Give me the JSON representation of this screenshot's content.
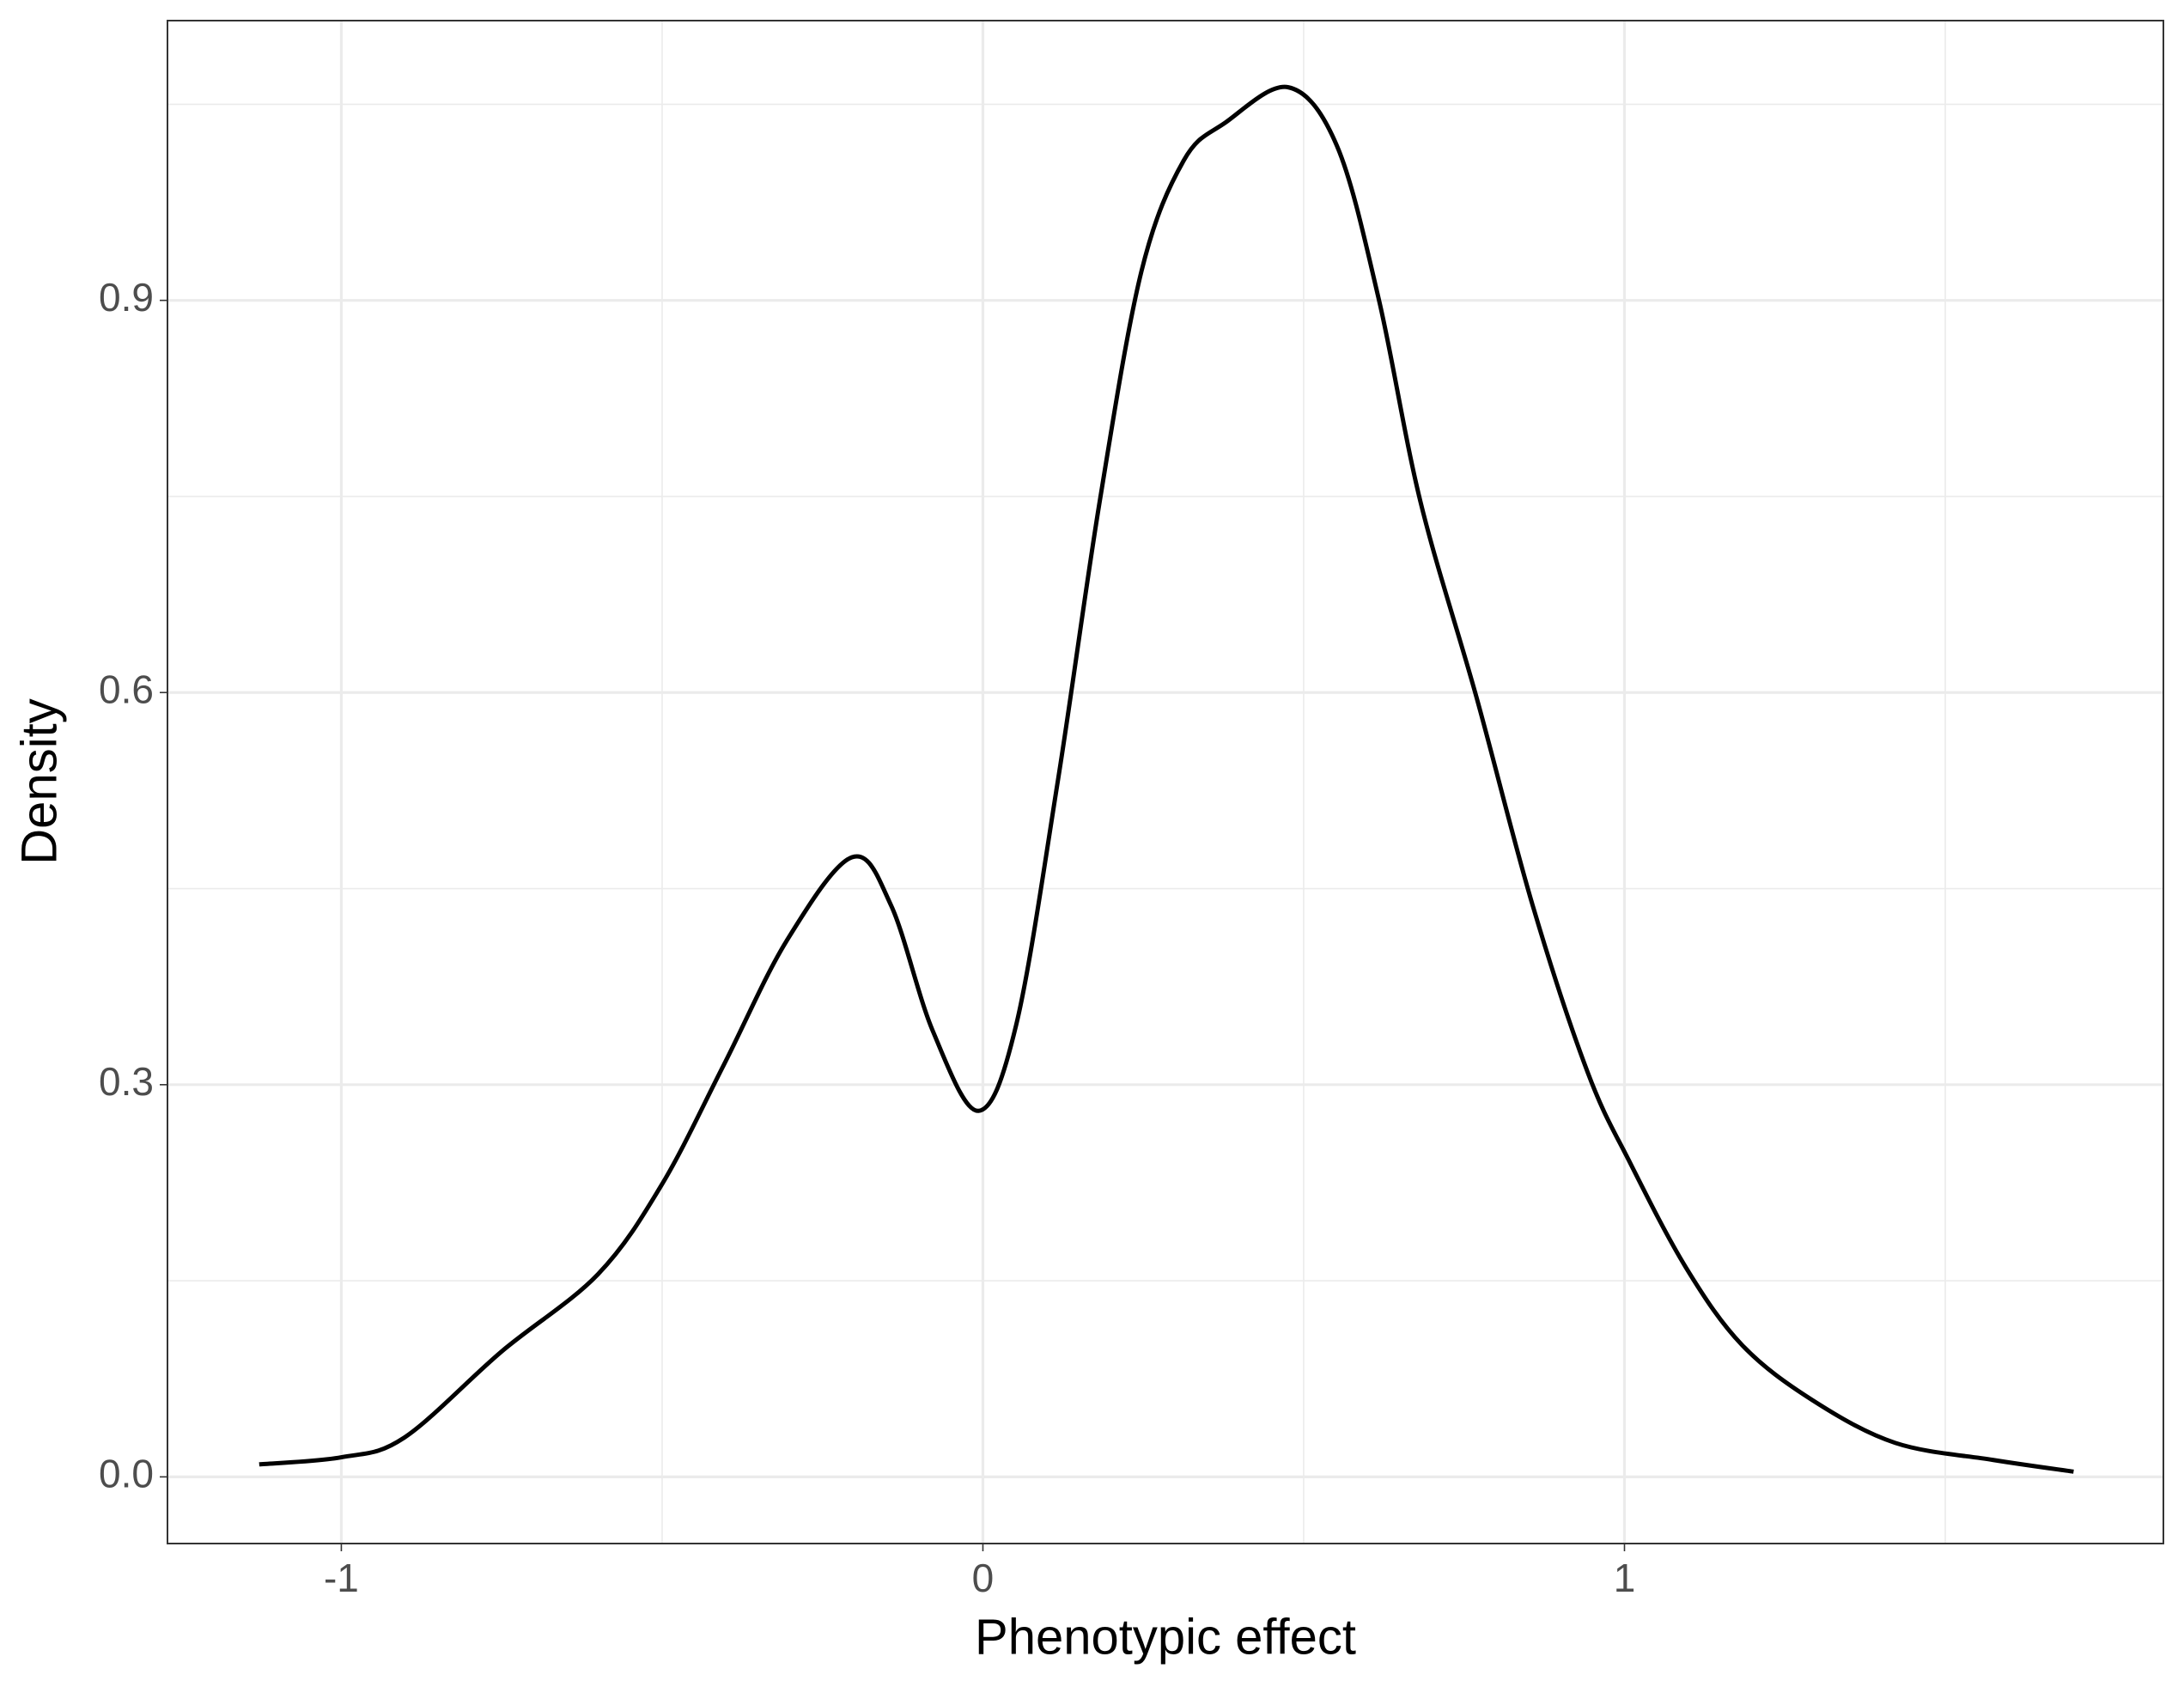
{
  "chart_data": {
    "type": "line",
    "x_label": "Phenotypic effect",
    "y_label": "Density",
    "x": [
      -1.128,
      -1.0,
      -0.902,
      -0.75,
      -0.6,
      -0.5,
      -0.404,
      -0.306,
      -0.204,
      -0.143,
      -0.078,
      -0.007,
      0.052,
      0.117,
      0.182,
      0.247,
      0.313,
      0.378,
      0.476,
      0.552,
      0.617,
      0.682,
      0.769,
      0.857,
      0.943,
      1.009,
      1.096,
      1.183,
      1.292,
      1.422,
      1.574,
      1.7
    ],
    "series": [
      {
        "color": "#000000",
        "values": [
          0.0096,
          0.015,
          0.03,
          0.096,
          0.155,
          0.224,
          0.315,
          0.41,
          0.474,
          0.437,
          0.341,
          0.28,
          0.346,
          0.533,
          0.746,
          0.922,
          1.007,
          1.036,
          1.063,
          1.018,
          0.901,
          0.746,
          0.597,
          0.437,
          0.309,
          0.24,
          0.16,
          0.101,
          0.059,
          0.026,
          0.013,
          0.004
        ]
      }
    ],
    "xlim": [
      -1.271,
      1.84
    ],
    "ylim": [
      -0.051,
      1.114
    ],
    "xticks": [
      -1,
      0,
      1
    ],
    "yticks": [
      {
        "value": 0,
        "label": "0.0"
      },
      0.3,
      0.6,
      0.9
    ],
    "grid": true
  }
}
